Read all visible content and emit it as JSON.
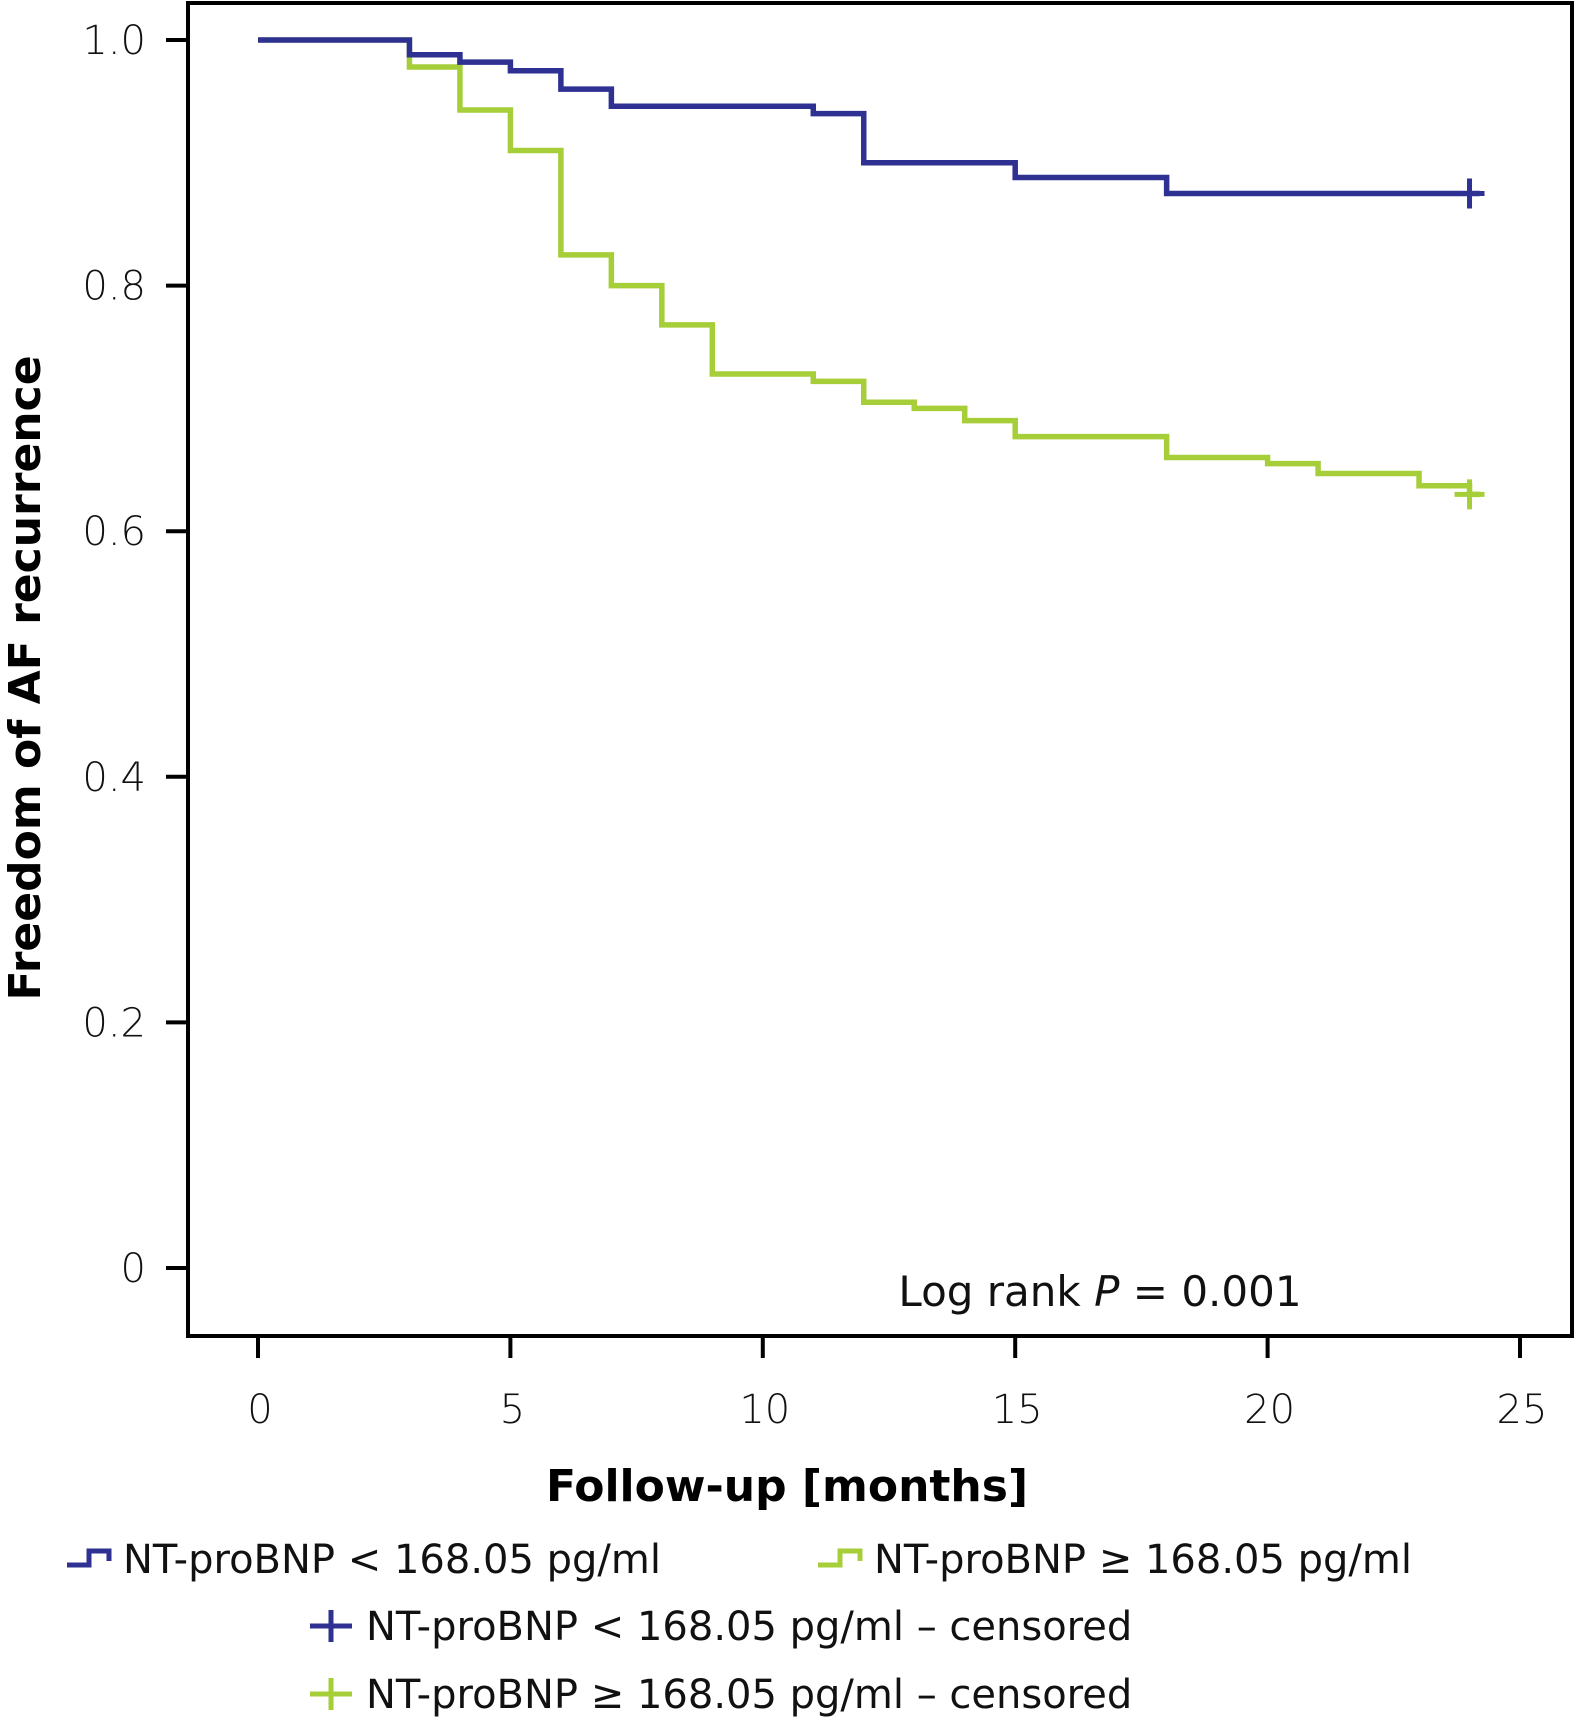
{
  "chart_data": {
    "type": "line",
    "subtype": "kaplan-meier step",
    "title": "",
    "xlabel": "Follow-up [months]",
    "ylabel": "Freedom of AF recurrence",
    "xlim": [
      0,
      25
    ],
    "ylim": [
      0,
      1.0
    ],
    "x_ticks": [
      0,
      5,
      10,
      15,
      20,
      25
    ],
    "x_tick_labels": [
      "0",
      "5",
      "10",
      "15",
      "20",
      "25"
    ],
    "y_ticks": [
      0,
      0.2,
      0.4,
      0.6,
      0.8,
      1.0
    ],
    "y_tick_labels": [
      "0",
      "0.2",
      "0.4",
      "0.6",
      "0.8",
      "1.0"
    ],
    "grid": false,
    "annotation": {
      "prefix": "Log rank ",
      "italic": "P",
      "suffix": " = 0.001"
    },
    "series": [
      {
        "name": "NT-proBNP < 168.05 pg/ml",
        "color": "#2e3192",
        "x": [
          0,
          3,
          4,
          5,
          6,
          7,
          11,
          12,
          15,
          18,
          24.2
        ],
        "y": [
          1.0,
          0.988,
          0.982,
          0.975,
          0.96,
          0.946,
          0.94,
          0.9,
          0.888,
          0.875,
          0.875
        ],
        "censored": [
          {
            "x": 24,
            "y": 0.875
          }
        ]
      },
      {
        "name": "NT-proBNP ≥ 168.05 pg/ml",
        "color": "#a6ce39",
        "x": [
          0,
          3,
          4,
          5,
          6,
          7,
          8,
          9,
          11,
          12,
          13,
          14,
          15,
          18,
          20,
          21,
          23,
          24,
          24.2
        ],
        "y": [
          1.0,
          0.978,
          0.943,
          0.91,
          0.825,
          0.8,
          0.768,
          0.728,
          0.722,
          0.705,
          0.7,
          0.69,
          0.677,
          0.66,
          0.655,
          0.647,
          0.637,
          0.63,
          0.63
        ],
        "censored": [
          {
            "x": 24,
            "y": 0.63
          }
        ]
      }
    ],
    "legend": {
      "placement": "bottom",
      "entries": [
        {
          "label": "NT-proBNP < 168.05 pg/ml",
          "symbol": "step",
          "color": "#2e3192"
        },
        {
          "label": "NT-proBNP ≥ 168.05 pg/ml",
          "symbol": "step",
          "color": "#a6ce39"
        },
        {
          "label": "NT-proBNP < 168.05 pg/ml – censored",
          "symbol": "plus",
          "color": "#2e3192"
        },
        {
          "label": "NT-proBNP ≥ 168.05 pg/ml – censored",
          "symbol": "plus",
          "color": "#a6ce39"
        }
      ]
    }
  }
}
